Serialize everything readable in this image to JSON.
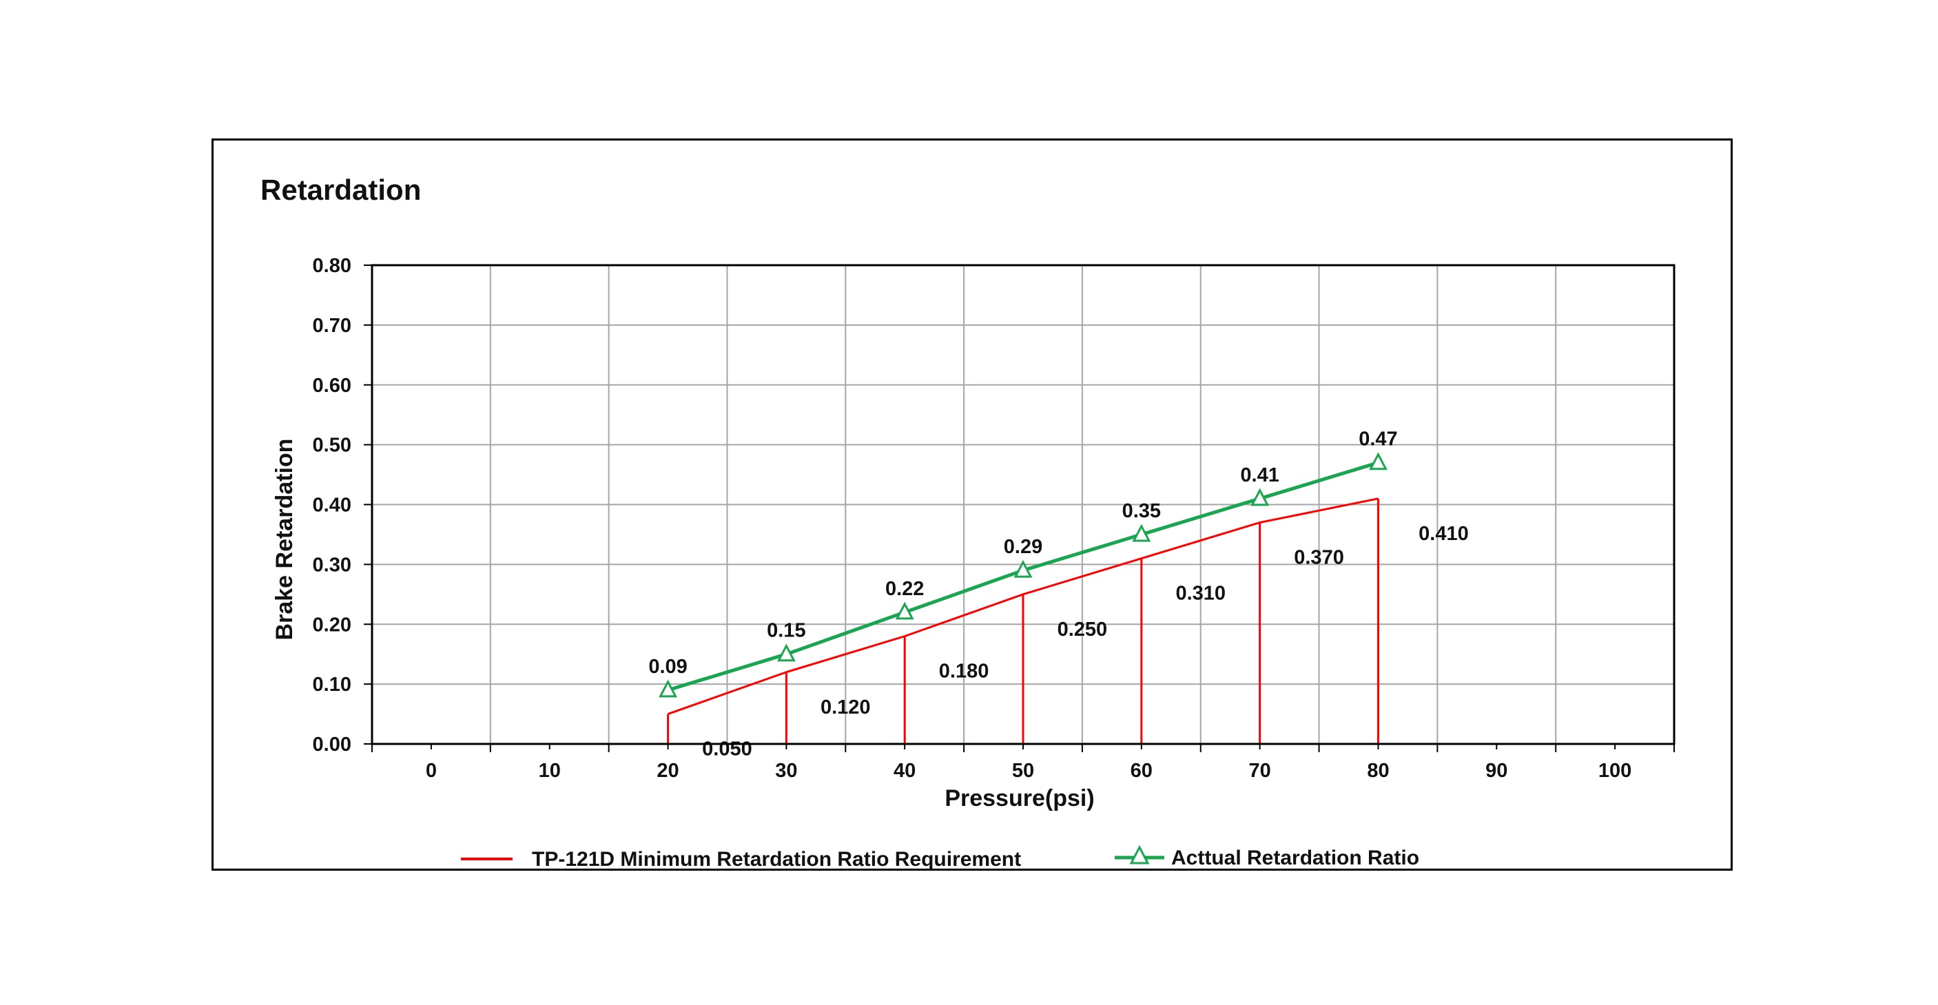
{
  "chart_data": {
    "type": "line",
    "title": "Retardation",
    "xlabel": "Pressure(psi)",
    "ylabel": "Brake Retardation",
    "x_ticks": [
      "0",
      "10",
      "20",
      "30",
      "40",
      "50",
      "60",
      "70",
      "80",
      "90",
      "100"
    ],
    "y_ticks": [
      "0.00",
      "0.10",
      "0.20",
      "0.30",
      "0.40",
      "0.50",
      "0.60",
      "0.70",
      "0.80"
    ],
    "xlim": [
      -5,
      105
    ],
    "ylim": [
      0,
      0.8
    ],
    "grid": true,
    "legend_position": "bottom",
    "series": [
      {
        "name": "TP-121D Minimum Retardation Ratio Requirement",
        "color": "#ff0000",
        "marker": "none",
        "x": [
          20,
          30,
          40,
          50,
          60,
          70,
          80
        ],
        "values": [
          0.05,
          0.12,
          0.18,
          0.25,
          0.31,
          0.37,
          0.41
        ],
        "labels": [
          "0.050",
          "0.120",
          "0.180",
          "0.250",
          "0.310",
          "0.370",
          "0.410"
        ]
      },
      {
        "name": "Acttual Retardation Ratio",
        "color": "#1aa550",
        "marker": "triangle-open",
        "x": [
          20,
          30,
          40,
          50,
          60,
          70,
          80
        ],
        "values": [
          0.09,
          0.15,
          0.22,
          0.29,
          0.35,
          0.41,
          0.47
        ],
        "labels": [
          "0.09",
          "0.15",
          "0.22",
          "0.29",
          "0.35",
          "0.41",
          "0.47"
        ]
      }
    ]
  }
}
